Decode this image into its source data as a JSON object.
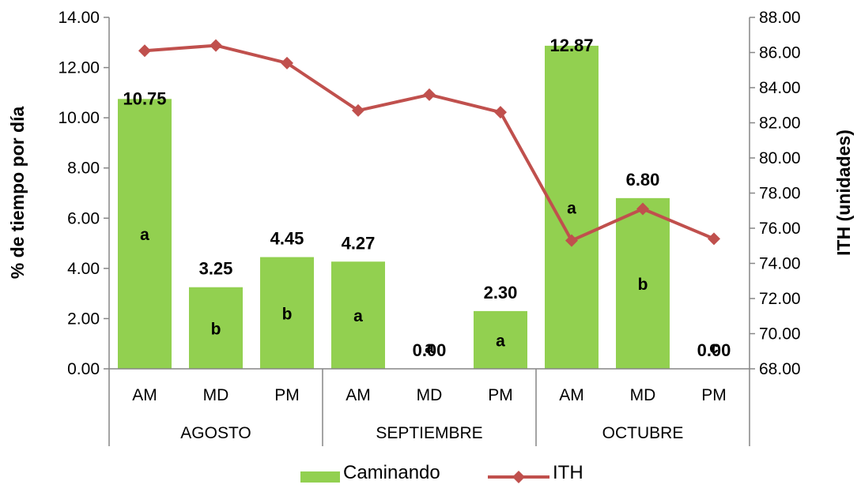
{
  "chart_data": {
    "type": "bar",
    "title": "",
    "ylabel": "% de tiempo por día",
    "y2label": "ITH (unidades)",
    "ylim": [
      0,
      14
    ],
    "y2lim": [
      68,
      88
    ],
    "yticks": [
      "0.00",
      "2.00",
      "4.00",
      "6.00",
      "8.00",
      "10.00",
      "12.00",
      "14.00"
    ],
    "y2ticks": [
      "68.00",
      "70.00",
      "72.00",
      "74.00",
      "76.00",
      "78.00",
      "80.00",
      "82.00",
      "84.00",
      "86.00",
      "88.00"
    ],
    "groups": [
      {
        "name": "AGOSTO",
        "categories": [
          "AM",
          "MD",
          "PM"
        ]
      },
      {
        "name": "SEPTIEMBRE",
        "categories": [
          "AM",
          "MD",
          "PM"
        ]
      },
      {
        "name": "OCTUBRE",
        "categories": [
          "AM",
          "MD",
          "PM"
        ]
      }
    ],
    "series": [
      {
        "name": "Caminando",
        "type": "bar",
        "axis": "left",
        "color": "#92d050",
        "values": [
          10.75,
          3.25,
          4.45,
          4.27,
          0.0,
          2.3,
          12.87,
          6.8,
          0.0
        ],
        "labels": [
          "10.75",
          "3.25",
          "4.45",
          "4.27",
          "0.00",
          "2.30",
          "12.87",
          "6.80",
          "0.00"
        ],
        "letters": [
          "a",
          "b",
          "b",
          "a",
          "a",
          "a",
          "a",
          "b",
          "c"
        ]
      },
      {
        "name": "ITH",
        "type": "line",
        "axis": "right",
        "color": "#c0504d",
        "marker": "diamond",
        "values": [
          86.1,
          86.4,
          85.4,
          82.7,
          83.6,
          82.6,
          75.3,
          77.1,
          75.4
        ]
      }
    ],
    "legend": "bottom",
    "grid": false
  }
}
